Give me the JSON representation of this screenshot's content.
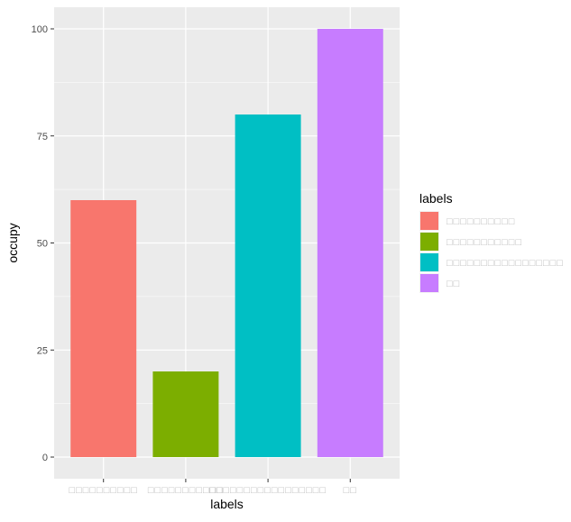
{
  "chart_data": {
    "type": "bar",
    "categories": [
      "□□□□□□□□□□",
      "□□□□□□□□□□□",
      "□□□□□□□□□□□□□□□□□",
      "□□"
    ],
    "values": [
      60,
      20,
      80,
      100
    ],
    "colors": [
      "#F8766D",
      "#7CAE00",
      "#00BFC4",
      "#C77CFF"
    ],
    "xlabel": "labels",
    "ylabel": "occupy",
    "ylim": [
      0,
      100
    ],
    "yticks": [
      0,
      25,
      50,
      75,
      100
    ],
    "grid": true,
    "panel_background": "#EBEBEB",
    "legend": {
      "title": "labels",
      "placement": "right",
      "entries": [
        "□□□□□□□□□□",
        "□□□□□□□□□□□",
        "□□□□□□□□□□□□□□□□□",
        "□□"
      ]
    }
  }
}
